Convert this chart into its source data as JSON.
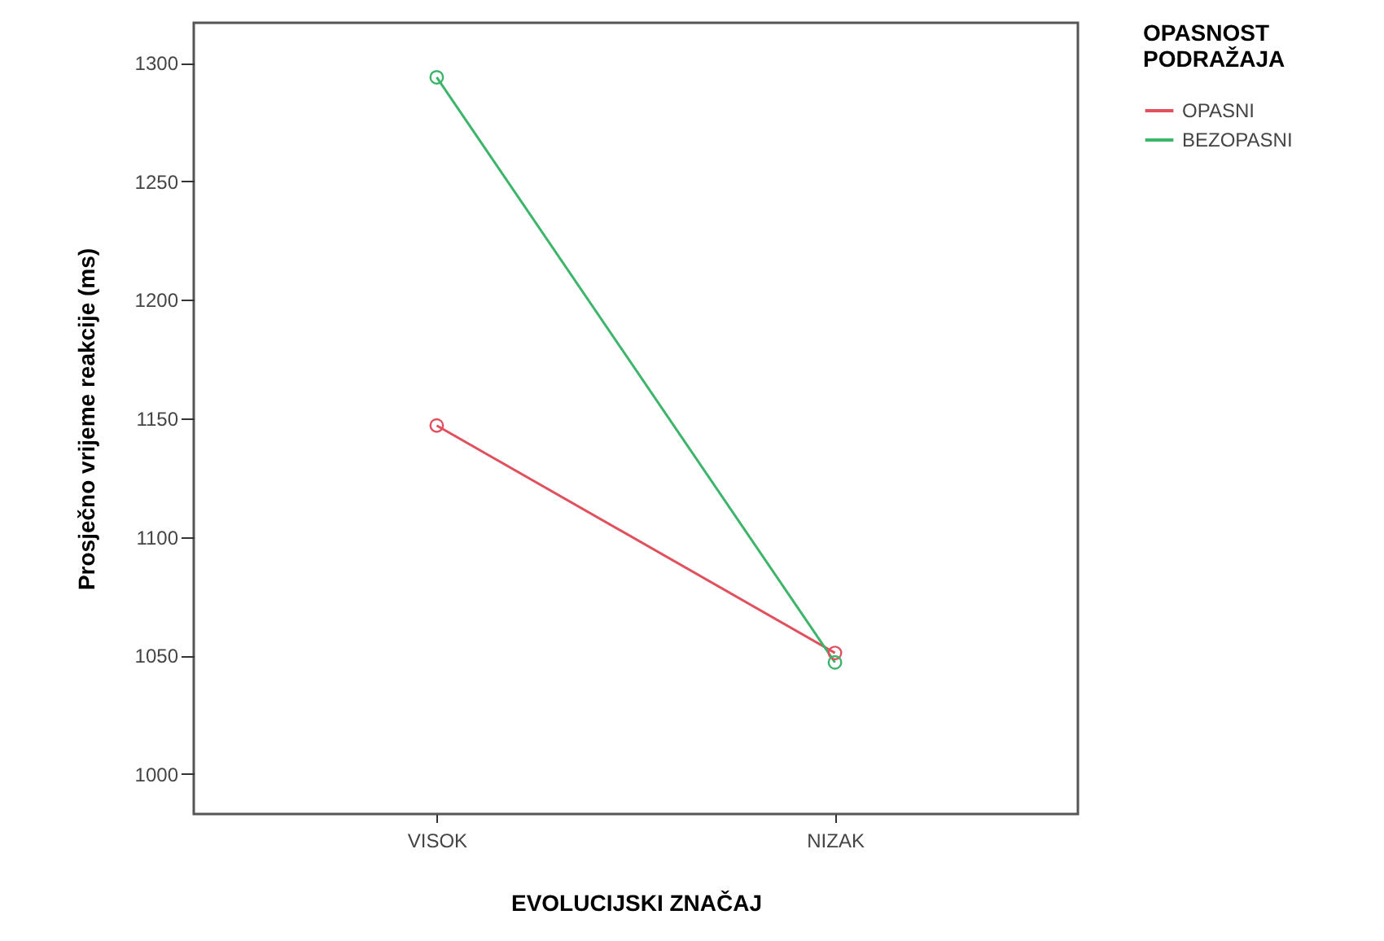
{
  "chart_data": {
    "type": "line",
    "xlabel": "EVOLUCIJSKI ZNAČAJ",
    "ylabel": "Prosječno vrijeme reakcije (ms)",
    "legend_title": "OPASNOST PODRAŽAJA",
    "categories": [
      "VISOK",
      "NIZAK"
    ],
    "series": [
      {
        "name": "OPASNI",
        "color": "#e0505e",
        "values": [
          1147,
          1051
        ]
      },
      {
        "name": "BEZOPASNI",
        "color": "#3cb46a",
        "values": [
          1294,
          1047
        ]
      }
    ],
    "ylim": [
      983,
      1317
    ],
    "yticks": [
      1000,
      1050,
      1100,
      1150,
      1200,
      1250,
      1300
    ],
    "grid": false,
    "legend": "right",
    "marker": "circle",
    "line_style": "solid"
  }
}
